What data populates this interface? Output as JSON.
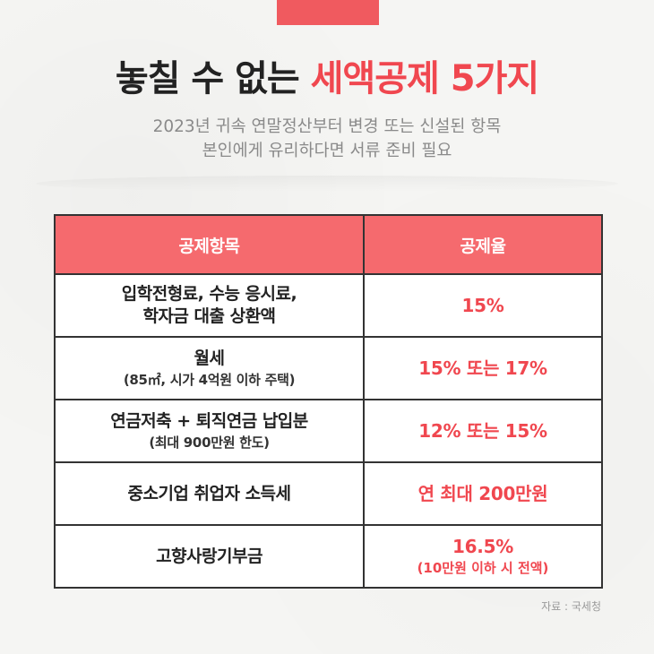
{
  "header": {
    "title_dark": "놓칠 수 없는",
    "title_accent": "세액공제 5가지",
    "subtitle_line1": "2023년 귀속 연말정산부터 변경 또는 신설된 항목",
    "subtitle_line2": "본인에게 유리하다면 서류 준비 필요"
  },
  "table": {
    "headers": [
      "공제항목",
      "공제율"
    ],
    "rows": [
      {
        "item": "입학전형료, 수능 응시료,",
        "item_sub": "학자금 대출 상환액",
        "rate": "15%",
        "rate_sub": ""
      },
      {
        "item": "월세",
        "item_sub": "(85㎡, 시가 4억원 이하 주택)",
        "rate": "15% 또는 17%",
        "rate_sub": ""
      },
      {
        "item": "연금저축 + 퇴직연금 납입분",
        "item_sub": "(최대 900만원 한도)",
        "rate": "12% 또는 15%",
        "rate_sub": ""
      },
      {
        "item": "중소기업 취업자 소득세",
        "item_sub": "",
        "rate": "연 최대 200만원",
        "rate_sub": ""
      },
      {
        "item": "고향사랑기부금",
        "item_sub": "",
        "rate": "16.5%",
        "rate_sub": "(10만원 이하 시 전액)"
      }
    ]
  },
  "source": "자료 : 국세청",
  "colors": {
    "accent": "#f0474f",
    "header_bg": "#f56a6e",
    "title_dark": "#222222"
  }
}
